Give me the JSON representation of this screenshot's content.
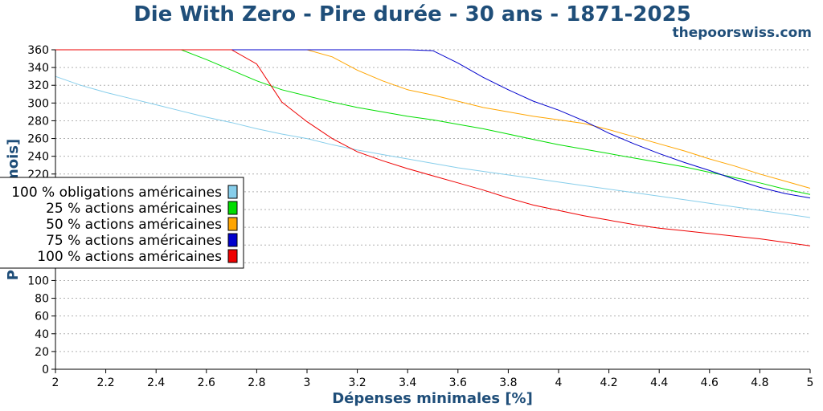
{
  "chart_data": {
    "type": "line",
    "title": "Die With Zero - Pire durée - 30 ans - 1871-2025",
    "subtitle": "thepoorswiss.com",
    "xlabel": "Dépenses minimales [%]",
    "ylabel": "Pire durée [mois]",
    "xlim": [
      2,
      5
    ],
    "ylim": [
      0,
      360
    ],
    "xticks": [
      "2",
      "2.2",
      "2.4",
      "2.6",
      "2.8",
      "3",
      "3.2",
      "3.4",
      "3.6",
      "3.8",
      "4",
      "4.2",
      "4.4",
      "4.6",
      "4.8",
      "5"
    ],
    "yticks": [
      "0",
      "20",
      "40",
      "60",
      "80",
      "100",
      "120",
      "140",
      "160",
      "180",
      "200",
      "220",
      "240",
      "260",
      "280",
      "300",
      "320",
      "340",
      "360"
    ],
    "grid": true,
    "legend_position": "left",
    "x": [
      2.0,
      2.1,
      2.2,
      2.3,
      2.4,
      2.5,
      2.6,
      2.7,
      2.8,
      2.9,
      3.0,
      3.1,
      3.2,
      3.3,
      3.4,
      3.5,
      3.6,
      3.7,
      3.8,
      3.9,
      4.0,
      4.1,
      4.2,
      4.3,
      4.4,
      4.5,
      4.6,
      4.7,
      4.8,
      4.9,
      5.0
    ],
    "series": [
      {
        "name": "100 % obligations américaines",
        "color": "#87ceeb",
        "values": [
          330,
          320,
          312,
          305,
          298,
          291,
          284,
          278,
          271,
          265,
          260,
          253,
          247,
          242,
          237,
          232,
          227,
          223,
          219,
          215,
          211,
          207,
          203,
          199,
          195,
          191,
          187,
          183,
          179,
          175,
          171
        ]
      },
      {
        "name": "25 % actions américaines",
        "color": "#00dd00",
        "values": [
          360,
          360,
          360,
          360,
          360,
          360,
          349,
          337,
          325,
          315,
          308,
          301,
          295,
          290,
          285,
          281,
          276,
          271,
          265,
          259,
          253,
          248,
          243,
          238,
          233,
          228,
          222,
          216,
          210,
          203,
          197
        ]
      },
      {
        "name": "50 % actions américaines",
        "color": "#ffa500",
        "values": [
          360,
          360,
          360,
          360,
          360,
          360,
          360,
          360,
          360,
          360,
          360,
          352,
          337,
          325,
          315,
          309,
          302,
          295,
          290,
          285,
          281,
          277,
          270,
          262,
          254,
          246,
          237,
          229,
          220,
          212,
          204
        ]
      },
      {
        "name": "75 % actions américaines",
        "color": "#0000cc",
        "values": [
          360,
          360,
          360,
          360,
          360,
          360,
          360,
          360,
          360,
          360,
          360,
          360,
          360,
          360,
          360,
          359,
          345,
          329,
          315,
          302,
          292,
          280,
          266,
          254,
          243,
          233,
          224,
          214,
          205,
          198,
          193
        ]
      },
      {
        "name": "100 % actions américaines",
        "color": "#ee0000",
        "values": [
          360,
          360,
          360,
          360,
          360,
          360,
          360,
          360,
          344,
          301,
          279,
          260,
          245,
          235,
          226,
          218,
          210,
          202,
          193,
          185,
          179,
          173,
          168,
          163,
          159,
          156,
          153,
          150,
          147,
          143,
          139
        ]
      }
    ]
  }
}
